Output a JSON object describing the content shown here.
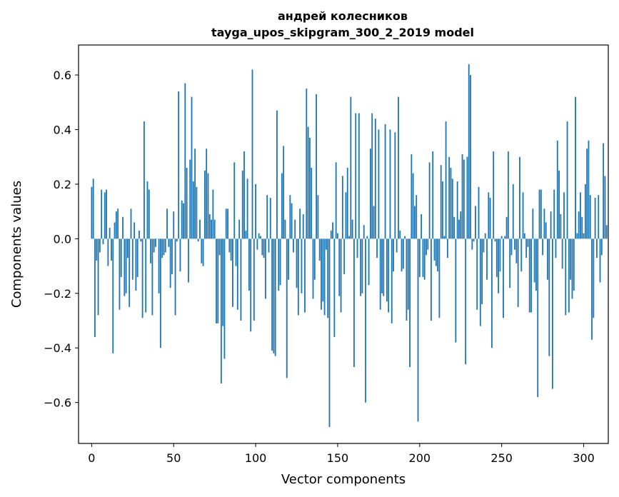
{
  "chart_data": {
    "type": "bar",
    "title_line1": "андрей колесников",
    "title_line2": "tayga_upos_skipgram_300_2_2019 model",
    "xlabel": "Vector components",
    "ylabel": "Components values",
    "xlim": [
      -8,
      315
    ],
    "ylim": [
      -0.75,
      0.71
    ],
    "xticks": [
      0,
      50,
      100,
      150,
      200,
      250,
      300
    ],
    "xtick_labels": [
      "0",
      "50",
      "100",
      "150",
      "200",
      "250",
      "300"
    ],
    "yticks": [
      -0.6,
      -0.4,
      -0.2,
      0.0,
      0.2,
      0.4,
      0.6
    ],
    "ytick_labels": [
      "−0.6",
      "−0.4",
      "−0.2",
      "0.0",
      "0.2",
      "0.4",
      "0.6"
    ],
    "bar_color": "#1f77b4",
    "grid": false,
    "values": [
      0.19,
      0.22,
      -0.36,
      -0.08,
      -0.28,
      -0.05,
      0.18,
      -0.02,
      0.17,
      0.18,
      -0.1,
      0.04,
      -0.08,
      -0.42,
      0.06,
      0.1,
      0.11,
      -0.26,
      -0.14,
      0.08,
      -0.21,
      -0.2,
      -0.07,
      -0.25,
      0.11,
      -0.15,
      0.06,
      -0.19,
      -0.14,
      0.03,
      -0.01,
      -0.29,
      0.43,
      -0.27,
      0.21,
      0.18,
      -0.09,
      -0.28,
      -0.05,
      -0.03,
      0.0,
      -0.2,
      -0.4,
      -0.07,
      -0.06,
      -0.05,
      0.11,
      -0.03,
      -0.18,
      -0.13,
      0.1,
      -0.28,
      -0.01,
      0.54,
      -0.12,
      0.14,
      0.13,
      0.57,
      0.26,
      -0.16,
      0.29,
      0.52,
      0.21,
      0.33,
      0.19,
      -0.01,
      0.07,
      -0.09,
      -0.1,
      0.25,
      0.33,
      0.24,
      0.09,
      0.07,
      0.18,
      0.07,
      -0.31,
      -0.31,
      -0.06,
      -0.53,
      -0.32,
      -0.44,
      0.11,
      0.11,
      -0.05,
      -0.08,
      -0.25,
      0.28,
      -0.1,
      -0.26,
      0.07,
      -0.3,
      0.25,
      0.32,
      0.03,
      0.22,
      -0.19,
      -0.34,
      0.62,
      -0.3,
      0.2,
      -0.04,
      0.02,
      0.01,
      -0.06,
      -0.07,
      -0.22,
      0.16,
      -0.05,
      0.15,
      -0.41,
      -0.42,
      -0.43,
      0.47,
      -0.19,
      -0.17,
      0.24,
      0.34,
      0.07,
      -0.51,
      -0.15,
      0.16,
      0.13,
      -0.05,
      0.07,
      -0.18,
      -0.28,
      0.11,
      -0.2,
      0.09,
      -0.27,
      0.55,
      0.41,
      0.37,
      0.26,
      -0.22,
      -0.15,
      0.53,
      0.16,
      -0.08,
      -0.26,
      -0.23,
      -0.28,
      -0.04,
      -0.29,
      -0.69,
      0.03,
      0.06,
      -0.36,
      0.28,
      0.02,
      -0.21,
      -0.27,
      0.23,
      -0.13,
      0.17,
      0.26,
      0.01,
      0.52,
      0.07,
      -0.47,
      0.46,
      -0.07,
      0.46,
      -0.21,
      -0.2,
      0.05,
      -0.6,
      0.01,
      -0.17,
      0.33,
      0.46,
      0.12,
      0.44,
      -0.07,
      0.4,
      -0.26,
      -0.2,
      -0.21,
      0.42,
      -0.23,
      -0.27,
      0.4,
      -0.31,
      -0.12,
      0.39,
      -0.05,
      0.52,
      0.03,
      -0.12,
      -0.11,
      0.01,
      -0.3,
      -0.26,
      -0.47,
      0.31,
      0.24,
      0.12,
      0.16,
      -0.67,
      -0.14,
      0.09,
      -0.14,
      -0.15,
      -0.06,
      -0.04,
      0.28,
      -0.3,
      0.32,
      -0.08,
      -0.1,
      -0.12,
      -0.29,
      0.27,
      0.21,
      0.01,
      0.43,
      -0.07,
      0.3,
      0.26,
      0.22,
      0.08,
      -0.38,
      0.21,
      0.07,
      0.1,
      0.31,
      0.29,
      -0.46,
      0.3,
      0.64,
      0.6,
      -0.04,
      -0.01,
      0.12,
      -0.26,
      0.19,
      -0.32,
      -0.24,
      -0.05,
      0.02,
      -0.15,
      0.17,
      0.15,
      -0.4,
      0.32,
      -0.01,
      -0.14,
      -0.2,
      -0.12,
      0.01,
      -0.29,
      0.01,
      0.08,
      0.32,
      -0.18,
      -0.06,
      0.2,
      -0.04,
      -0.09,
      -0.25,
      0.3,
      -0.12,
      0.17,
      0.02,
      -0.07,
      -0.03,
      -0.27,
      -0.27,
      0.11,
      -0.16,
      -0.19,
      -0.58,
      0.18,
      0.18,
      -0.06,
      0.11,
      0.06,
      -0.15,
      -0.43,
      0.1,
      -0.55,
      0.18,
      -0.07,
      0.36,
      0.25,
      0.09,
      -0.11,
      0.17,
      -0.28,
      0.43,
      -0.27,
      -0.15,
      -0.22,
      -0.19,
      0.52,
      0.02,
      0.1,
      0.17,
      0.08,
      0.02,
      0.2,
      0.33,
      0.36,
      0.16,
      -0.37,
      -0.29,
      0.15,
      -0.07,
      0.16,
      -0.16,
      -0.06,
      0.35,
      0.23,
      0.05
    ]
  }
}
